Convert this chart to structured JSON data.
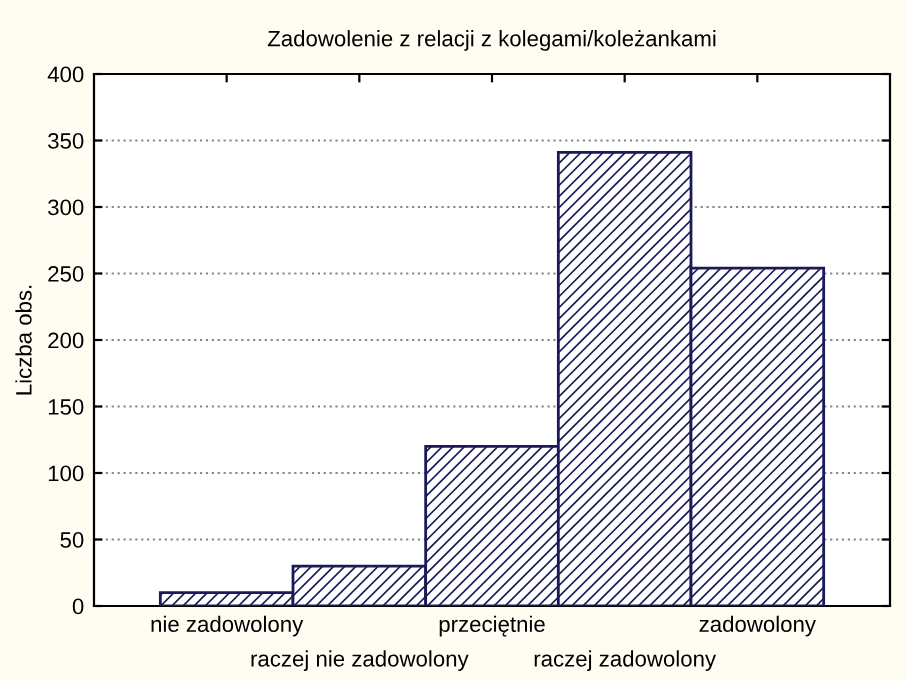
{
  "chart_data": {
    "type": "bar",
    "title": "Zadowolenie z relacji z kolegami/koleżankami",
    "ylabel": "Liczba obs.",
    "categories": [
      "nie zadowolony",
      "raczej nie zadowolony",
      "przeciętnie",
      "raczej zadowolony",
      "zadowolony"
    ],
    "values": [
      10,
      30,
      120,
      341,
      254
    ],
    "color": "#1a1a5a",
    "ylim": [
      0,
      400
    ],
    "yticks": [
      0,
      50,
      100,
      150,
      200,
      250,
      300,
      350,
      400
    ],
    "grid": "y"
  }
}
